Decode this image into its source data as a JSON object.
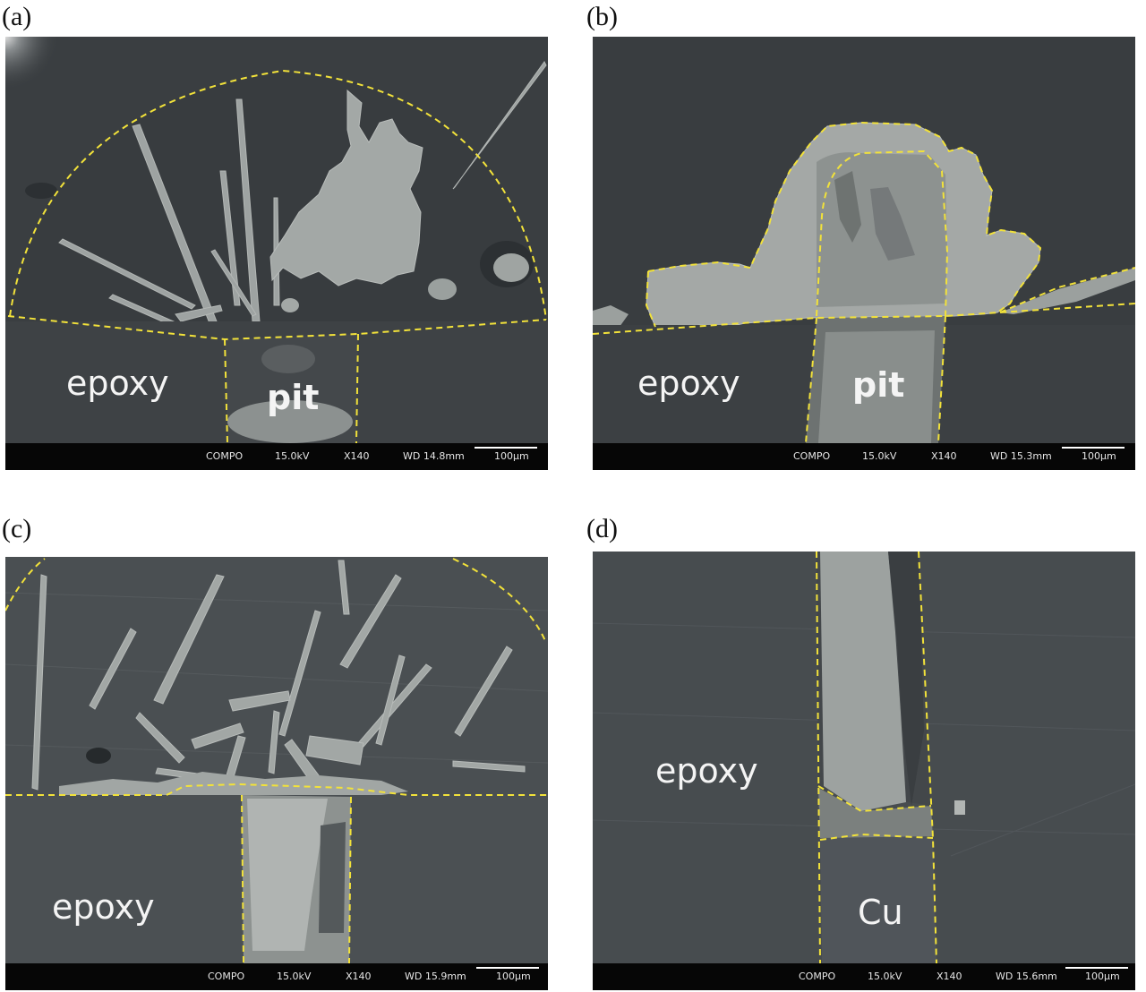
{
  "panels": [
    {
      "letter": "(a)",
      "labels": {
        "left": "epoxy",
        "center": "pit"
      },
      "info": {
        "mode": "COMPO",
        "voltage": "15.0kV",
        "mag": "X140",
        "wd": "WD 14.8mm",
        "scale": "100µm"
      }
    },
    {
      "letter": "(b)",
      "labels": {
        "left": "epoxy",
        "center": "pit"
      },
      "info": {
        "mode": "COMPO",
        "voltage": "15.0kV",
        "mag": "X140",
        "wd": "WD 15.3mm",
        "scale": "100µm"
      }
    },
    {
      "letter": "(c)",
      "labels": {
        "left": "epoxy"
      },
      "info": {
        "mode": "COMPO",
        "voltage": "15.0kV",
        "mag": "X140",
        "wd": "WD 15.9mm",
        "scale": "100µm"
      }
    },
    {
      "letter": "(d)",
      "labels": {
        "left": "epoxy",
        "center": "Cu"
      },
      "info": {
        "mode": "COMPO",
        "voltage": "15.0kV",
        "mag": "X140",
        "wd": "WD 15.6mm",
        "scale": "100µm"
      }
    }
  ],
  "colors": {
    "background": "#3b3f42",
    "outline": "#f2e23a",
    "deposit": "#a9adab",
    "label": "#f4f4f4",
    "info_bar": "#060606"
  }
}
